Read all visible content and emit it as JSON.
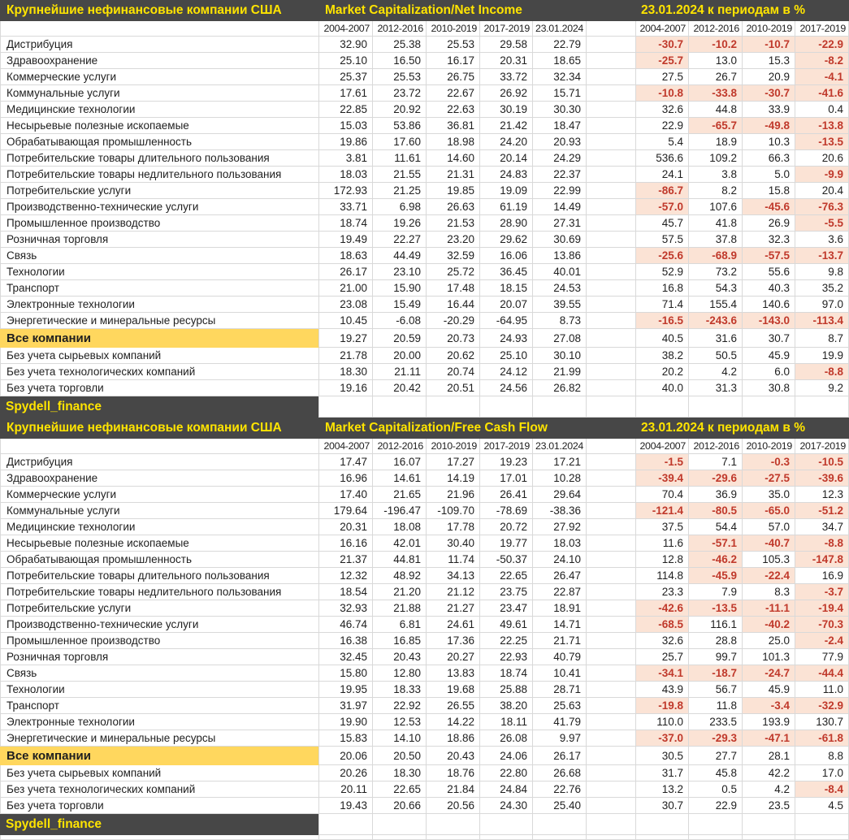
{
  "colors": {
    "header_background": "#474747",
    "header_text": "#ffe400",
    "summary_fill": "#ffd75e",
    "negative_fill": "#fbe3d5",
    "negative_text": "#c0392b",
    "gridline": "#d9d9d9"
  },
  "tables": [
    {
      "title_left": "Крупнейшие нефинансовые компании США",
      "title_metric": "Market Capitalization/Net Income",
      "title_right": "23.01.2024 к периодам в %",
      "value_headers": [
        "2004-2007",
        "2012-2016",
        "2010-2019",
        "2017-2019",
        "23.01.2024"
      ],
      "pct_headers": [
        "2004-2007",
        "2012-2016",
        "2010-2019",
        "2017-2019"
      ],
      "rows": [
        {
          "name": "Дистрибуция",
          "values": [
            32.9,
            25.38,
            25.53,
            29.58,
            22.79
          ],
          "pct": [
            -30.7,
            -10.2,
            -10.7,
            -22.9
          ]
        },
        {
          "name": "Здравоохранение",
          "values": [
            25.1,
            16.5,
            16.17,
            20.31,
            18.65
          ],
          "pct": [
            -25.7,
            13.0,
            15.3,
            -8.2
          ]
        },
        {
          "name": "Коммерческие услуги",
          "values": [
            25.37,
            25.53,
            26.75,
            33.72,
            32.34
          ],
          "pct": [
            27.5,
            26.7,
            20.9,
            -4.1
          ]
        },
        {
          "name": "Коммунальные услуги",
          "values": [
            17.61,
            23.72,
            22.67,
            26.92,
            15.71
          ],
          "pct": [
            -10.8,
            -33.8,
            -30.7,
            -41.6
          ]
        },
        {
          "name": "Медицинские технологии",
          "values": [
            22.85,
            20.92,
            22.63,
            30.19,
            30.3
          ],
          "pct": [
            32.6,
            44.8,
            33.9,
            0.4
          ]
        },
        {
          "name": "Несырьевые полезные ископаемые",
          "values": [
            15.03,
            53.86,
            36.81,
            21.42,
            18.47
          ],
          "pct": [
            22.9,
            -65.7,
            -49.8,
            -13.8
          ]
        },
        {
          "name": "Обрабатывающая промышленность",
          "values": [
            19.86,
            17.6,
            18.98,
            24.2,
            20.93
          ],
          "pct": [
            5.4,
            18.9,
            10.3,
            -13.5
          ]
        },
        {
          "name": "Потребительские товары длительного пользования",
          "values": [
            3.81,
            11.61,
            14.6,
            20.14,
            24.29
          ],
          "pct": [
            536.6,
            109.2,
            66.3,
            20.6
          ]
        },
        {
          "name": "Потребительские товары недлительного пользования",
          "values": [
            18.03,
            21.55,
            21.31,
            24.83,
            22.37
          ],
          "pct": [
            24.1,
            3.8,
            5.0,
            -9.9
          ]
        },
        {
          "name": "Потребительские услуги",
          "values": [
            172.93,
            21.25,
            19.85,
            19.09,
            22.99
          ],
          "pct": [
            -86.7,
            8.2,
            15.8,
            20.4
          ]
        },
        {
          "name": "Производственно-технические услуги",
          "values": [
            33.71,
            6.98,
            26.63,
            61.19,
            14.49
          ],
          "pct": [
            -57.0,
            107.6,
            -45.6,
            -76.3
          ]
        },
        {
          "name": "Промышленное производство",
          "values": [
            18.74,
            19.26,
            21.53,
            28.9,
            27.31
          ],
          "pct": [
            45.7,
            41.8,
            26.9,
            -5.5
          ]
        },
        {
          "name": "Розничная торговля",
          "values": [
            19.49,
            22.27,
            23.2,
            29.62,
            30.69
          ],
          "pct": [
            57.5,
            37.8,
            32.3,
            3.6
          ]
        },
        {
          "name": "Связь",
          "values": [
            18.63,
            44.49,
            32.59,
            16.06,
            13.86
          ],
          "pct": [
            -25.6,
            -68.9,
            -57.5,
            -13.7
          ]
        },
        {
          "name": "Технологии",
          "values": [
            26.17,
            23.1,
            25.72,
            36.45,
            40.01
          ],
          "pct": [
            52.9,
            73.2,
            55.6,
            9.8
          ]
        },
        {
          "name": "Транспорт",
          "values": [
            21.0,
            15.9,
            17.48,
            18.15,
            24.53
          ],
          "pct": [
            16.8,
            54.3,
            40.3,
            35.2
          ]
        },
        {
          "name": "Электронные технологии",
          "values": [
            23.08,
            15.49,
            16.44,
            20.07,
            39.55
          ],
          "pct": [
            71.4,
            155.4,
            140.6,
            97.0
          ]
        },
        {
          "name": "Энергетические и минеральные ресурсы",
          "values": [
            10.45,
            -6.08,
            -20.29,
            -64.95,
            8.73
          ],
          "pct": [
            -16.5,
            -243.6,
            -143.0,
            -113.4
          ]
        }
      ],
      "summary_row": {
        "name": "Все компании",
        "values": [
          19.27,
          20.59,
          20.73,
          24.93,
          27.08
        ],
        "pct": [
          40.5,
          31.6,
          30.7,
          8.7
        ]
      },
      "extra_rows": [
        {
          "name": "Без учета сырьевых компаний",
          "values": [
            21.78,
            20.0,
            20.62,
            25.1,
            30.1
          ],
          "pct": [
            38.2,
            50.5,
            45.9,
            19.9
          ]
        },
        {
          "name": "Без учета технологических компаний",
          "values": [
            18.3,
            21.11,
            20.74,
            24.12,
            21.99
          ],
          "pct": [
            20.2,
            4.2,
            6.0,
            -8.8
          ]
        },
        {
          "name": "Без учета торговли",
          "values": [
            19.16,
            20.42,
            20.51,
            24.56,
            26.82
          ],
          "pct": [
            40.0,
            31.3,
            30.8,
            9.2
          ]
        }
      ],
      "footer": "Spydell_finance"
    },
    {
      "title_left": "Крупнейшие нефинансовые компании США",
      "title_metric": "Market Capitalization/Free Cash Flow",
      "title_right": "23.01.2024 к периодам в %",
      "value_headers": [
        "2004-2007",
        "2012-2016",
        "2010-2019",
        "2017-2019",
        "23.01.2024"
      ],
      "pct_headers": [
        "2004-2007",
        "2012-2016",
        "2010-2019",
        "2017-2019"
      ],
      "rows": [
        {
          "name": "Дистрибуция",
          "values": [
            17.47,
            16.07,
            17.27,
            19.23,
            17.21
          ],
          "pct": [
            -1.5,
            7.1,
            -0.3,
            -10.5
          ]
        },
        {
          "name": "Здравоохранение",
          "values": [
            16.96,
            14.61,
            14.19,
            17.01,
            10.28
          ],
          "pct": [
            -39.4,
            -29.6,
            -27.5,
            -39.6
          ]
        },
        {
          "name": "Коммерческие услуги",
          "values": [
            17.4,
            21.65,
            21.96,
            26.41,
            29.64
          ],
          "pct": [
            70.4,
            36.9,
            35.0,
            12.3
          ]
        },
        {
          "name": "Коммунальные услуги",
          "values": [
            179.64,
            -196.47,
            -109.7,
            -78.69,
            -38.36
          ],
          "pct": [
            -121.4,
            -80.5,
            -65.0,
            -51.2
          ]
        },
        {
          "name": "Медицинские технологии",
          "values": [
            20.31,
            18.08,
            17.78,
            20.72,
            27.92
          ],
          "pct": [
            37.5,
            54.4,
            57.0,
            34.7
          ]
        },
        {
          "name": "Несырьевые полезные ископаемые",
          "values": [
            16.16,
            42.01,
            30.4,
            19.77,
            18.03
          ],
          "pct": [
            11.6,
            -57.1,
            -40.7,
            -8.8
          ]
        },
        {
          "name": "Обрабатывающая промышленность",
          "values": [
            21.37,
            44.81,
            11.74,
            -50.37,
            24.1
          ],
          "pct": [
            12.8,
            -46.2,
            105.3,
            -147.8
          ]
        },
        {
          "name": "Потребительские товары длительного пользования",
          "values": [
            12.32,
            48.92,
            34.13,
            22.65,
            26.47
          ],
          "pct": [
            114.8,
            -45.9,
            -22.4,
            16.9
          ]
        },
        {
          "name": "Потребительские товары недлительного пользования",
          "values": [
            18.54,
            21.2,
            21.12,
            23.75,
            22.87
          ],
          "pct": [
            23.3,
            7.9,
            8.3,
            -3.7
          ]
        },
        {
          "name": "Потребительские услуги",
          "values": [
            32.93,
            21.88,
            21.27,
            23.47,
            18.91
          ],
          "pct": [
            -42.6,
            -13.5,
            -11.1,
            -19.4
          ]
        },
        {
          "name": "Производственно-технические услуги",
          "values": [
            46.74,
            6.81,
            24.61,
            49.61,
            14.71
          ],
          "pct": [
            -68.5,
            116.1,
            -40.2,
            -70.3
          ]
        },
        {
          "name": "Промышленное производство",
          "values": [
            16.38,
            16.85,
            17.36,
            22.25,
            21.71
          ],
          "pct": [
            32.6,
            28.8,
            25.0,
            -2.4
          ]
        },
        {
          "name": "Розничная торговля",
          "values": [
            32.45,
            20.43,
            20.27,
            22.93,
            40.79
          ],
          "pct": [
            25.7,
            99.7,
            101.3,
            77.9
          ]
        },
        {
          "name": "Связь",
          "values": [
            15.8,
            12.8,
            13.83,
            18.74,
            10.41
          ],
          "pct": [
            -34.1,
            -18.7,
            -24.7,
            -44.4
          ]
        },
        {
          "name": "Технологии",
          "values": [
            19.95,
            18.33,
            19.68,
            25.88,
            28.71
          ],
          "pct": [
            43.9,
            56.7,
            45.9,
            11.0
          ]
        },
        {
          "name": "Транспорт",
          "values": [
            31.97,
            22.92,
            26.55,
            38.2,
            25.63
          ],
          "pct": [
            -19.8,
            11.8,
            -3.4,
            -32.9
          ]
        },
        {
          "name": "Электронные технологии",
          "values": [
            19.9,
            12.53,
            14.22,
            18.11,
            41.79
          ],
          "pct": [
            110.0,
            233.5,
            193.9,
            130.7
          ]
        },
        {
          "name": "Энергетические и минеральные ресурсы",
          "values": [
            15.83,
            14.1,
            18.86,
            26.08,
            9.97
          ],
          "pct": [
            -37.0,
            -29.3,
            -47.1,
            -61.8
          ]
        }
      ],
      "summary_row": {
        "name": "Все компании",
        "values": [
          20.06,
          20.5,
          20.43,
          24.06,
          26.17
        ],
        "pct": [
          30.5,
          27.7,
          28.1,
          8.8
        ]
      },
      "extra_rows": [
        {
          "name": "Без учета сырьевых компаний",
          "values": [
            20.26,
            18.3,
            18.76,
            22.8,
            26.68
          ],
          "pct": [
            31.7,
            45.8,
            42.2,
            17.0
          ]
        },
        {
          "name": "Без учета технологических компаний",
          "values": [
            20.11,
            22.65,
            21.84,
            24.84,
            22.76
          ],
          "pct": [
            13.2,
            0.5,
            4.2,
            -8.4
          ]
        },
        {
          "name": "Без учета торговли",
          "values": [
            19.43,
            20.66,
            20.56,
            24.3,
            25.4
          ],
          "pct": [
            30.7,
            22.9,
            23.5,
            4.5
          ]
        }
      ],
      "footer": "Spydell_finance"
    }
  ]
}
